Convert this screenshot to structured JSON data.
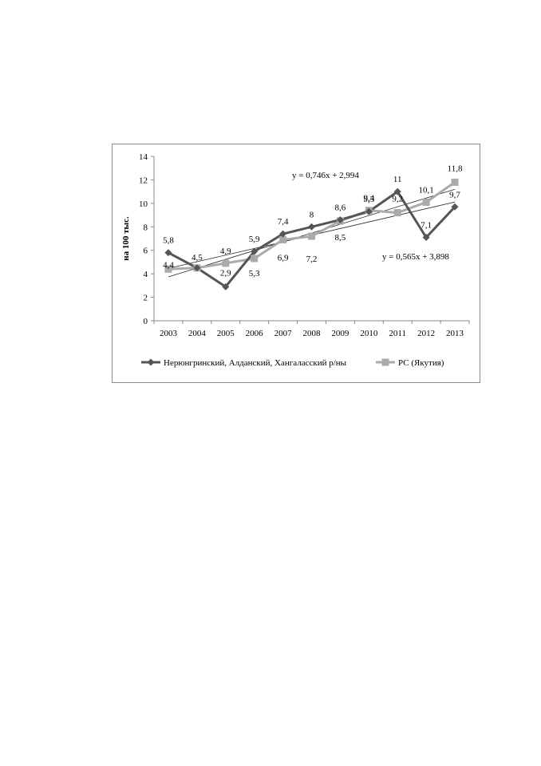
{
  "chart_data": {
    "type": "line",
    "categories": [
      "2003",
      "2004",
      "2005",
      "2006",
      "2007",
      "2008",
      "2009",
      "2010",
      "2011",
      "2012",
      "2013"
    ],
    "ylabel": "на 100 тыс.",
    "ylim": [
      0,
      14
    ],
    "yticks": [
      0,
      2,
      4,
      6,
      8,
      10,
      12,
      14
    ],
    "legend_position": "bottom",
    "grid": false,
    "series": [
      {
        "name": "Нерюнгринский, Алданский, Хангаласский  р/ны",
        "color": "#555555",
        "marker": "diamond",
        "values": [
          5.8,
          4.5,
          2.9,
          5.9,
          7.4,
          8.0,
          8.6,
          9.3,
          11.0,
          7.1,
          9.7
        ],
        "labels": [
          "5,8",
          "4,5",
          "2,9",
          "5,9",
          "7,4",
          "8",
          "8,6",
          "9,3",
          "11",
          "7,1",
          "9,7"
        ]
      },
      {
        "name": "РС (Якутия)",
        "color": "#aaaaaa",
        "marker": "square",
        "values": [
          4.4,
          4.5,
          4.9,
          5.3,
          6.9,
          7.2,
          8.5,
          9.4,
          9.2,
          10.1,
          11.8
        ],
        "labels": [
          "4,4",
          "",
          "4,9",
          "5,3",
          "6,9",
          "7,2",
          "8,5",
          "9,4",
          "9,2",
          "10,1",
          "11,8"
        ]
      }
    ],
    "trendlines": [
      {
        "equation": "y = 0,746x + 2,994",
        "slope": 0.746,
        "intercept": 2.994
      },
      {
        "equation": "y = 0,565x + 3,898",
        "slope": 0.565,
        "intercept": 3.898
      }
    ]
  }
}
